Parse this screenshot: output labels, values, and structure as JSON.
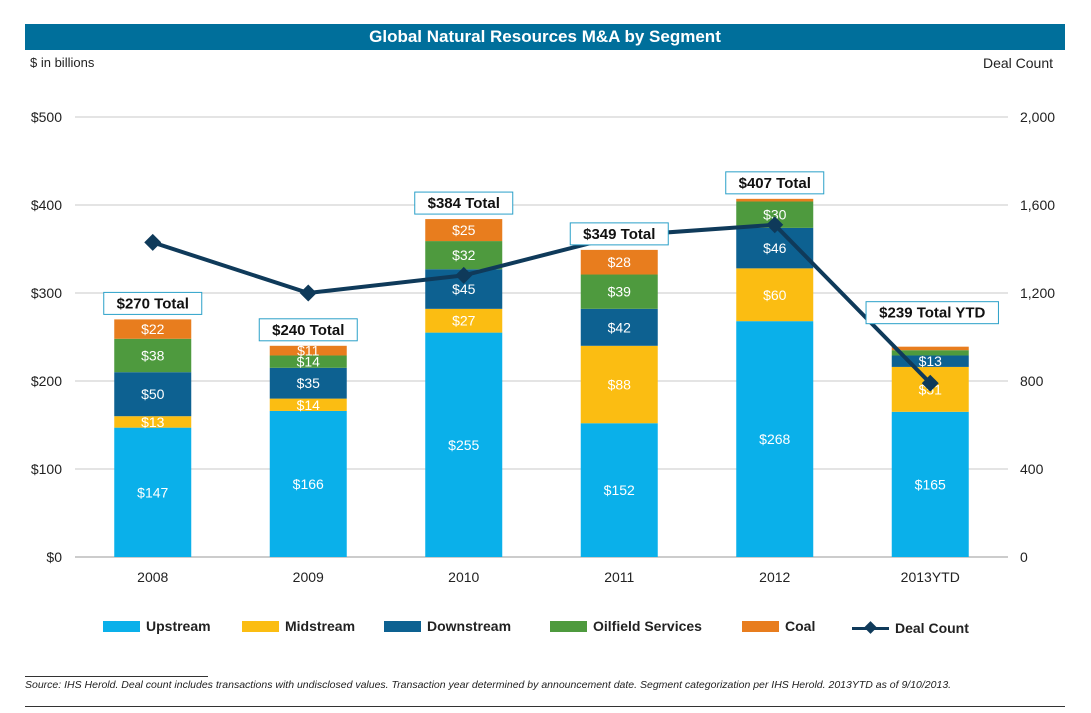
{
  "title": "Global Natural Resources M&A by Segment",
  "unit_left": "$ in billions",
  "unit_right": "Deal Count",
  "source": "Source: IHS Herold. Deal count includes transactions with undisclosed values. Transaction year determined by announcement date. Segment categorization per IHS Herold. 2013YTD as of 9/10/2013.",
  "chart_data": {
    "type": "bar",
    "stacked": true,
    "categories": [
      "2008",
      "2009",
      "2010",
      "2011",
      "2012",
      "2013YTD"
    ],
    "series": [
      {
        "name": "Upstream",
        "color": "#0ab0ea",
        "values": [
          147,
          166,
          255,
          152,
          268,
          165
        ],
        "labels": [
          "$147",
          "$166",
          "$255",
          "$152",
          "$268",
          "$165"
        ]
      },
      {
        "name": "Midstream",
        "color": "#fbbd12",
        "values": [
          13,
          14,
          27,
          88,
          60,
          51
        ],
        "labels": [
          "$13",
          "$14",
          "$27",
          "$88",
          "$60",
          "$51"
        ]
      },
      {
        "name": "Downstream",
        "color": "#0d6191",
        "values": [
          50,
          35,
          45,
          42,
          46,
          13
        ],
        "labels": [
          "$50",
          "$35",
          "$45",
          "$42",
          "$46",
          "$13"
        ]
      },
      {
        "name": "Oilfield Services",
        "color": "#4e9a3e",
        "values": [
          38,
          14,
          32,
          39,
          30,
          6
        ],
        "labels": [
          "$38",
          "$14",
          "$32",
          "$39",
          "$30",
          ""
        ]
      },
      {
        "name": "Coal",
        "color": "#e87d1e",
        "values": [
          22,
          11,
          25,
          28,
          3,
          4
        ],
        "labels": [
          "$22",
          "$11",
          "$25",
          "$28",
          "",
          ""
        ]
      }
    ],
    "totals": [
      "$270 Total",
      "$240 Total",
      "$384 Total",
      "$349 Total",
      "$407 Total",
      "$239 Total YTD"
    ],
    "line_series": {
      "name": "Deal Count",
      "color": "#0f3a5a",
      "values": [
        1430,
        1200,
        1280,
        1460,
        1510,
        790
      ]
    },
    "y_left": {
      "min": 0,
      "max": 500,
      "ticks": [
        0,
        100,
        200,
        300,
        400,
        500
      ],
      "tick_labels": [
        "$0",
        "$100",
        "$200",
        "$300",
        "$400",
        "$500"
      ]
    },
    "y_right": {
      "min": 0,
      "max": 2000,
      "ticks": [
        0,
        400,
        800,
        1200,
        1600,
        2000
      ],
      "tick_labels": [
        "0",
        "400",
        "800",
        "1,200",
        "1,600",
        "2,000"
      ]
    },
    "grid": true,
    "legend_position": "bottom"
  },
  "legend": [
    {
      "label": "Upstream",
      "color": "#0ab0ea",
      "kind": "swatch"
    },
    {
      "label": "Midstream",
      "color": "#fbbd12",
      "kind": "swatch"
    },
    {
      "label": "Downstream",
      "color": "#0d6191",
      "kind": "swatch"
    },
    {
      "label": "Oilfield Services",
      "color": "#4e9a3e",
      "kind": "swatch"
    },
    {
      "label": "Coal",
      "color": "#e87d1e",
      "kind": "swatch"
    },
    {
      "label": "Deal Count",
      "color": "#0f3a5a",
      "kind": "line"
    }
  ]
}
